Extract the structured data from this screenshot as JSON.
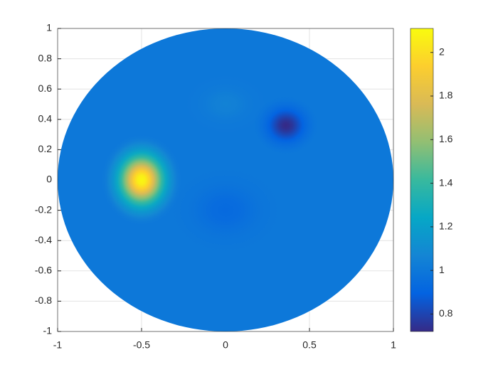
{
  "chart_data": {
    "type": "disk-map",
    "colormap": "parula",
    "clim": [
      0.72,
      2.11
    ],
    "cticks": [
      0.8,
      1,
      1.2,
      1.4,
      1.6,
      1.8,
      2
    ],
    "xlim": [
      -1,
      1
    ],
    "xticks": [
      -1,
      -0.5,
      0,
      0.5,
      1
    ],
    "ylim": [
      -1,
      1
    ],
    "yticks": [
      -1,
      -0.8,
      -0.6,
      -0.4,
      -0.2,
      0,
      0.2,
      0.4,
      0.6,
      0.8,
      1
    ],
    "grid": true,
    "disk_radius": 1,
    "background": 1.0,
    "features": [
      {
        "x": 0,
        "y": -0.2,
        "rx": 0.35,
        "ry": 0.3,
        "value": 0.93
      },
      {
        "x": 0,
        "y": 0.5,
        "rx": 0.25,
        "ry": 0.2,
        "value": 1.05
      },
      {
        "x": -0.5,
        "y": 0,
        "rx": 0.24,
        "ry": 0.3,
        "value": 2.1
      },
      {
        "x": 0.36,
        "y": 0.36,
        "rx": 0.2,
        "ry": 0.2,
        "value": 0.72
      }
    ]
  }
}
